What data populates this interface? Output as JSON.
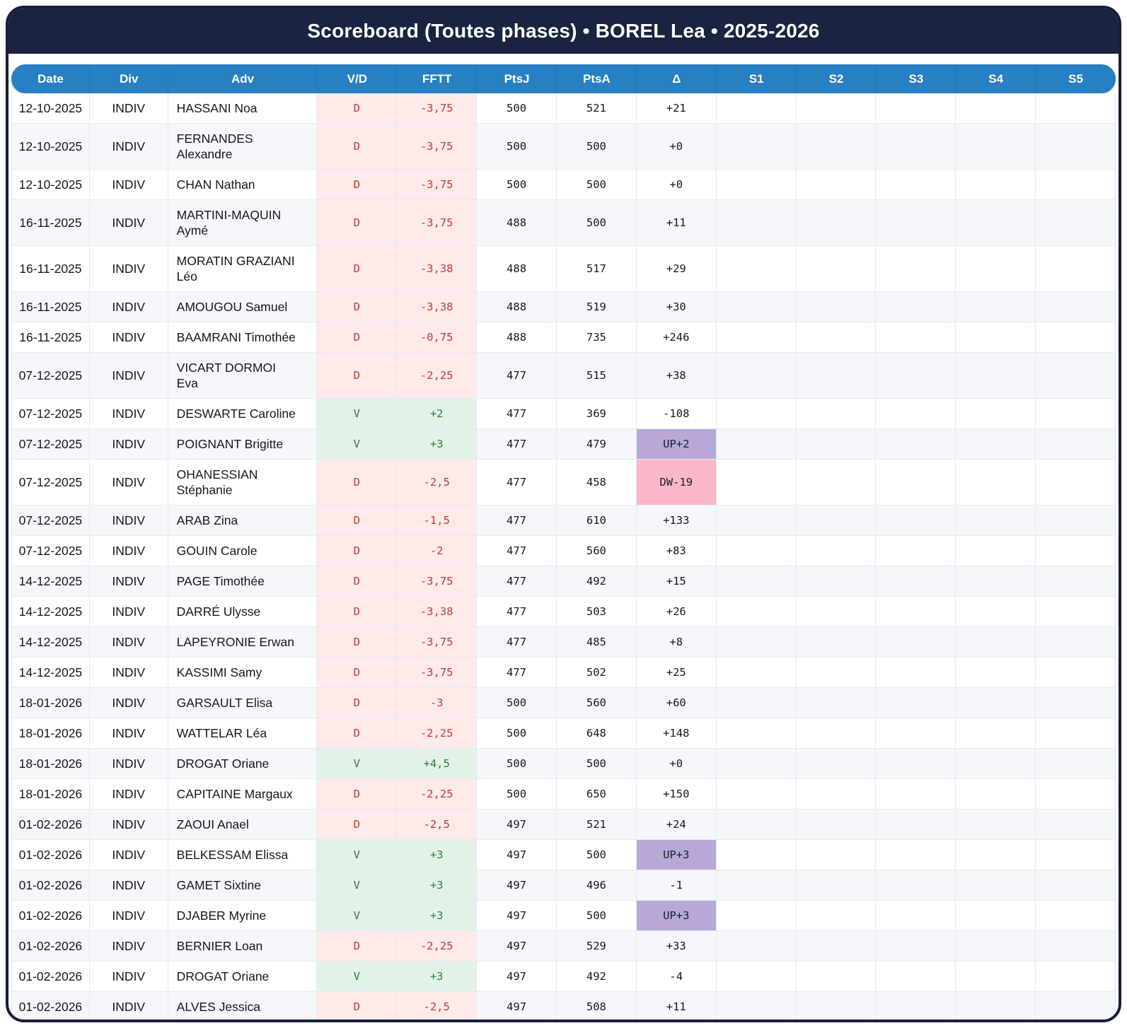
{
  "header": {
    "title": "Scoreboard (Toutes phases) • BOREL Lea • 2025-2026"
  },
  "table": {
    "columns": [
      "Date",
      "Div",
      "Adv",
      "V/D",
      "FFTT",
      "PtsJ",
      "PtsA",
      "Δ",
      "S1",
      "S2",
      "S3",
      "S4",
      "S5"
    ],
    "rows": [
      {
        "date": "12-10-2025",
        "div": "INDIV",
        "adv": "HASSANI Noa",
        "vd": "D",
        "fftt": "-3,75",
        "ptsj": "500",
        "ptsa": "521",
        "delta": "+21",
        "delta_highlight": "",
        "s1": "",
        "s2": "",
        "s3": "",
        "s4": "",
        "s5": ""
      },
      {
        "date": "12-10-2025",
        "div": "INDIV",
        "adv": "FERNANDES Alexandre",
        "vd": "D",
        "fftt": "-3,75",
        "ptsj": "500",
        "ptsa": "500",
        "delta": "+0",
        "delta_highlight": "",
        "s1": "",
        "s2": "",
        "s3": "",
        "s4": "",
        "s5": ""
      },
      {
        "date": "12-10-2025",
        "div": "INDIV",
        "adv": "CHAN Nathan",
        "vd": "D",
        "fftt": "-3,75",
        "ptsj": "500",
        "ptsa": "500",
        "delta": "+0",
        "delta_highlight": "",
        "s1": "",
        "s2": "",
        "s3": "",
        "s4": "",
        "s5": ""
      },
      {
        "date": "16-11-2025",
        "div": "INDIV",
        "adv": "MARTINI-MAQUIN Aymé",
        "vd": "D",
        "fftt": "-3,75",
        "ptsj": "488",
        "ptsa": "500",
        "delta": "+11",
        "delta_highlight": "",
        "s1": "",
        "s2": "",
        "s3": "",
        "s4": "",
        "s5": ""
      },
      {
        "date": "16-11-2025",
        "div": "INDIV",
        "adv": "MORATIN GRAZIANI Léo",
        "vd": "D",
        "fftt": "-3,38",
        "ptsj": "488",
        "ptsa": "517",
        "delta": "+29",
        "delta_highlight": "",
        "s1": "",
        "s2": "",
        "s3": "",
        "s4": "",
        "s5": ""
      },
      {
        "date": "16-11-2025",
        "div": "INDIV",
        "adv": "AMOUGOU Samuel",
        "vd": "D",
        "fftt": "-3,38",
        "ptsj": "488",
        "ptsa": "519",
        "delta": "+30",
        "delta_highlight": "",
        "s1": "",
        "s2": "",
        "s3": "",
        "s4": "",
        "s5": ""
      },
      {
        "date": "16-11-2025",
        "div": "INDIV",
        "adv": "BAAMRANI Timothée",
        "vd": "D",
        "fftt": "-0,75",
        "ptsj": "488",
        "ptsa": "735",
        "delta": "+246",
        "delta_highlight": "",
        "s1": "",
        "s2": "",
        "s3": "",
        "s4": "",
        "s5": ""
      },
      {
        "date": "07-12-2025",
        "div": "INDIV",
        "adv": "VICART DORMOI Eva",
        "vd": "D",
        "fftt": "-2,25",
        "ptsj": "477",
        "ptsa": "515",
        "delta": "+38",
        "delta_highlight": "",
        "s1": "",
        "s2": "",
        "s3": "",
        "s4": "",
        "s5": ""
      },
      {
        "date": "07-12-2025",
        "div": "INDIV",
        "adv": "DESWARTE Caroline",
        "vd": "V",
        "fftt": "+2",
        "ptsj": "477",
        "ptsa": "369",
        "delta": "-108",
        "delta_highlight": "",
        "s1": "",
        "s2": "",
        "s3": "",
        "s4": "",
        "s5": ""
      },
      {
        "date": "07-12-2025",
        "div": "INDIV",
        "adv": "POIGNANT Brigitte",
        "vd": "V",
        "fftt": "+3",
        "ptsj": "477",
        "ptsa": "479",
        "delta": "UP+2",
        "delta_highlight": "up",
        "s1": "",
        "s2": "",
        "s3": "",
        "s4": "",
        "s5": ""
      },
      {
        "date": "07-12-2025",
        "div": "INDIV",
        "adv": "OHANESSIAN Stéphanie",
        "vd": "D",
        "fftt": "-2,5",
        "ptsj": "477",
        "ptsa": "458",
        "delta": "DW-19",
        "delta_highlight": "down",
        "s1": "",
        "s2": "",
        "s3": "",
        "s4": "",
        "s5": ""
      },
      {
        "date": "07-12-2025",
        "div": "INDIV",
        "adv": "ARAB Zina",
        "vd": "D",
        "fftt": "-1,5",
        "ptsj": "477",
        "ptsa": "610",
        "delta": "+133",
        "delta_highlight": "",
        "s1": "",
        "s2": "",
        "s3": "",
        "s4": "",
        "s5": ""
      },
      {
        "date": "07-12-2025",
        "div": "INDIV",
        "adv": "GOUIN Carole",
        "vd": "D",
        "fftt": "-2",
        "ptsj": "477",
        "ptsa": "560",
        "delta": "+83",
        "delta_highlight": "",
        "s1": "",
        "s2": "",
        "s3": "",
        "s4": "",
        "s5": ""
      },
      {
        "date": "14-12-2025",
        "div": "INDIV",
        "adv": "PAGE Timothée",
        "vd": "D",
        "fftt": "-3,75",
        "ptsj": "477",
        "ptsa": "492",
        "delta": "+15",
        "delta_highlight": "",
        "s1": "",
        "s2": "",
        "s3": "",
        "s4": "",
        "s5": ""
      },
      {
        "date": "14-12-2025",
        "div": "INDIV",
        "adv": "DARRÉ Ulysse",
        "vd": "D",
        "fftt": "-3,38",
        "ptsj": "477",
        "ptsa": "503",
        "delta": "+26",
        "delta_highlight": "",
        "s1": "",
        "s2": "",
        "s3": "",
        "s4": "",
        "s5": ""
      },
      {
        "date": "14-12-2025",
        "div": "INDIV",
        "adv": "LAPEYRONIE Erwan",
        "vd": "D",
        "fftt": "-3,75",
        "ptsj": "477",
        "ptsa": "485",
        "delta": "+8",
        "delta_highlight": "",
        "s1": "",
        "s2": "",
        "s3": "",
        "s4": "",
        "s5": ""
      },
      {
        "date": "14-12-2025",
        "div": "INDIV",
        "adv": "KASSIMI Samy",
        "vd": "D",
        "fftt": "-3,75",
        "ptsj": "477",
        "ptsa": "502",
        "delta": "+25",
        "delta_highlight": "",
        "s1": "",
        "s2": "",
        "s3": "",
        "s4": "",
        "s5": ""
      },
      {
        "date": "18-01-2026",
        "div": "INDIV",
        "adv": "GARSAULT Elisa",
        "vd": "D",
        "fftt": "-3",
        "ptsj": "500",
        "ptsa": "560",
        "delta": "+60",
        "delta_highlight": "",
        "s1": "",
        "s2": "",
        "s3": "",
        "s4": "",
        "s5": ""
      },
      {
        "date": "18-01-2026",
        "div": "INDIV",
        "adv": "WATTELAR Léa",
        "vd": "D",
        "fftt": "-2,25",
        "ptsj": "500",
        "ptsa": "648",
        "delta": "+148",
        "delta_highlight": "",
        "s1": "",
        "s2": "",
        "s3": "",
        "s4": "",
        "s5": ""
      },
      {
        "date": "18-01-2026",
        "div": "INDIV",
        "adv": "DROGAT Oriane",
        "vd": "V",
        "fftt": "+4,5",
        "ptsj": "500",
        "ptsa": "500",
        "delta": "+0",
        "delta_highlight": "",
        "s1": "",
        "s2": "",
        "s3": "",
        "s4": "",
        "s5": ""
      },
      {
        "date": "18-01-2026",
        "div": "INDIV",
        "adv": "CAPITAINE Margaux",
        "vd": "D",
        "fftt": "-2,25",
        "ptsj": "500",
        "ptsa": "650",
        "delta": "+150",
        "delta_highlight": "",
        "s1": "",
        "s2": "",
        "s3": "",
        "s4": "",
        "s5": ""
      },
      {
        "date": "01-02-2026",
        "div": "INDIV",
        "adv": "ZAOUI Anael",
        "vd": "D",
        "fftt": "-2,5",
        "ptsj": "497",
        "ptsa": "521",
        "delta": "+24",
        "delta_highlight": "",
        "s1": "",
        "s2": "",
        "s3": "",
        "s4": "",
        "s5": ""
      },
      {
        "date": "01-02-2026",
        "div": "INDIV",
        "adv": "BELKESSAM Elissa",
        "vd": "V",
        "fftt": "+3",
        "ptsj": "497",
        "ptsa": "500",
        "delta": "UP+3",
        "delta_highlight": "up",
        "s1": "",
        "s2": "",
        "s3": "",
        "s4": "",
        "s5": ""
      },
      {
        "date": "01-02-2026",
        "div": "INDIV",
        "adv": "GAMET Sixtine",
        "vd": "V",
        "fftt": "+3",
        "ptsj": "497",
        "ptsa": "496",
        "delta": "-1",
        "delta_highlight": "",
        "s1": "",
        "s2": "",
        "s3": "",
        "s4": "",
        "s5": ""
      },
      {
        "date": "01-02-2026",
        "div": "INDIV",
        "adv": "DJABER Myrine",
        "vd": "V",
        "fftt": "+3",
        "ptsj": "497",
        "ptsa": "500",
        "delta": "UP+3",
        "delta_highlight": "up",
        "s1": "",
        "s2": "",
        "s3": "",
        "s4": "",
        "s5": ""
      },
      {
        "date": "01-02-2026",
        "div": "INDIV",
        "adv": "BERNIER Loan",
        "vd": "D",
        "fftt": "-2,25",
        "ptsj": "497",
        "ptsa": "529",
        "delta": "+33",
        "delta_highlight": "",
        "s1": "",
        "s2": "",
        "s3": "",
        "s4": "",
        "s5": ""
      },
      {
        "date": "01-02-2026",
        "div": "INDIV",
        "adv": "DROGAT Oriane",
        "vd": "V",
        "fftt": "+3",
        "ptsj": "497",
        "ptsa": "492",
        "delta": "-4",
        "delta_highlight": "",
        "s1": "",
        "s2": "",
        "s3": "",
        "s4": "",
        "s5": ""
      },
      {
        "date": "01-02-2026",
        "div": "INDIV",
        "adv": "ALVES Jessica",
        "vd": "D",
        "fftt": "-2,5",
        "ptsj": "497",
        "ptsa": "508",
        "delta": "+11",
        "delta_highlight": "",
        "s1": "",
        "s2": "",
        "s3": "",
        "s4": "",
        "s5": ""
      }
    ]
  },
  "colors": {
    "title_band": "#1a2440",
    "header_row": "#2680c2",
    "win_bg": "#e2f2e7",
    "win_text": "#2e7d3a",
    "loss_bg": "#fdeae9",
    "loss_text": "#c23a36",
    "delta_up_bg": "#b7a8d9",
    "delta_down_bg": "#fbb7c9",
    "row_stripe": "#f5f7fb"
  }
}
